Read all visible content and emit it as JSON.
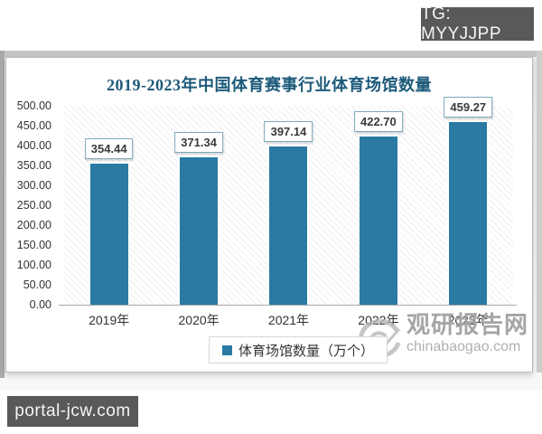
{
  "overlays": {
    "tg_badge": "TG: MYYJJPP",
    "portal_badge": "portal-jcw.com"
  },
  "brand": {
    "name": "观研报告网",
    "url": "chinabaogao.com"
  },
  "chart_data": {
    "type": "bar",
    "title": "2019-2023年中国体育赛事行业体育场馆数量",
    "categories": [
      "2019年",
      "2020年",
      "2021年",
      "2022年",
      "2023年"
    ],
    "series": [
      {
        "name": "体育场馆数量（万个）",
        "values": [
          354.44,
          371.34,
          397.14,
          422.7,
          459.27
        ]
      }
    ],
    "value_labels": [
      "354.44",
      "371.34",
      "397.14",
      "422.70",
      "459.27"
    ],
    "ylim": [
      0,
      500
    ],
    "ytick_step": 50,
    "yticks": [
      "500.00",
      "450.00",
      "400.00",
      "350.00",
      "300.00",
      "250.00",
      "200.00",
      "150.00",
      "100.00",
      "50.00",
      "0.00"
    ],
    "grid": false,
    "legend_position": "bottom",
    "colors": {
      "bar": "#2a7aa4",
      "title": "#1d5a7a",
      "value_label_border": "#7fa7bd",
      "watermark_gray": "#a5a5a5",
      "badge_bg": "#595959"
    }
  }
}
